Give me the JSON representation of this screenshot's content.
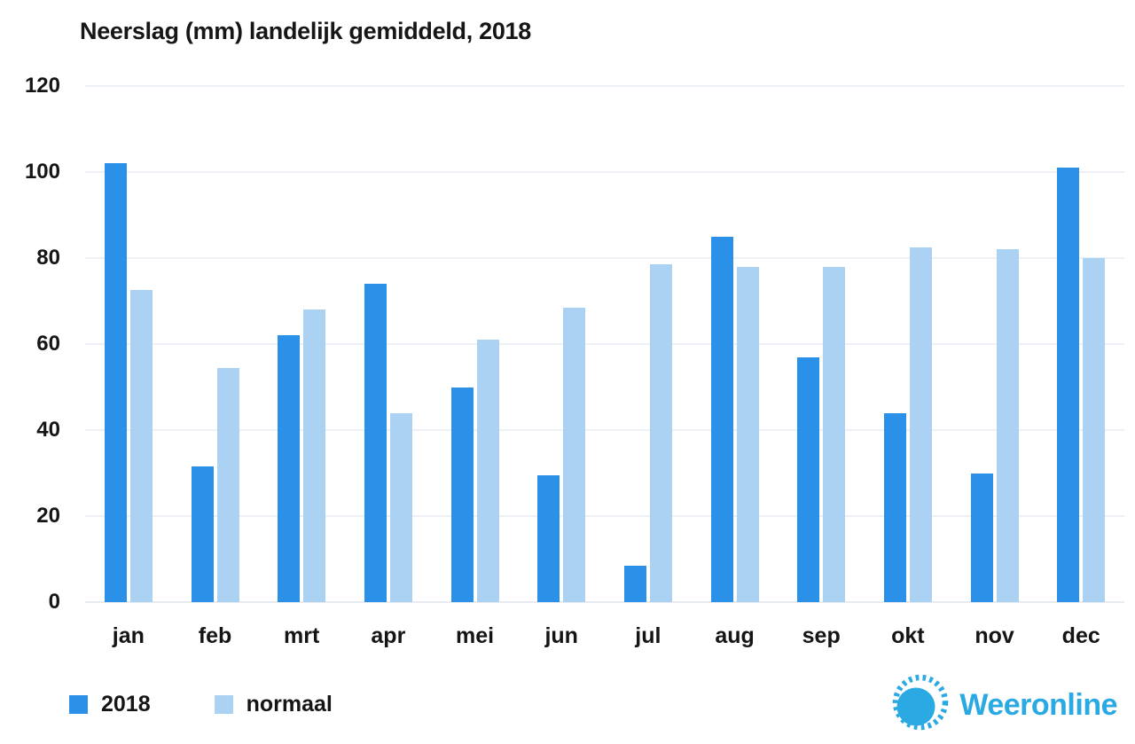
{
  "chart_data": {
    "type": "bar",
    "title": "Neerslag (mm) landelijk gemiddeld, 2018",
    "categories": [
      "jan",
      "feb",
      "mrt",
      "apr",
      "mei",
      "jun",
      "jul",
      "aug",
      "sep",
      "okt",
      "nov",
      "dec"
    ],
    "series": [
      {
        "name": "2018",
        "color": "#2B90E8",
        "values": [
          102,
          31.5,
          62,
          74,
          50,
          29.5,
          8.5,
          85,
          57,
          44,
          30,
          101
        ]
      },
      {
        "name": "normaal",
        "color": "#ABD2F3",
        "values": [
          72.5,
          54.5,
          68,
          44,
          61,
          68.5,
          78.5,
          78,
          78,
          82.5,
          82,
          80
        ]
      }
    ],
    "xlabel": "",
    "ylabel": "",
    "ylim": [
      0,
      120
    ],
    "yticks": [
      0,
      20,
      40,
      60,
      80,
      100,
      120
    ],
    "grid": true,
    "legend_position": "bottom-left"
  },
  "brand": {
    "name": "Weeronline",
    "color": "#2AA9E2"
  }
}
